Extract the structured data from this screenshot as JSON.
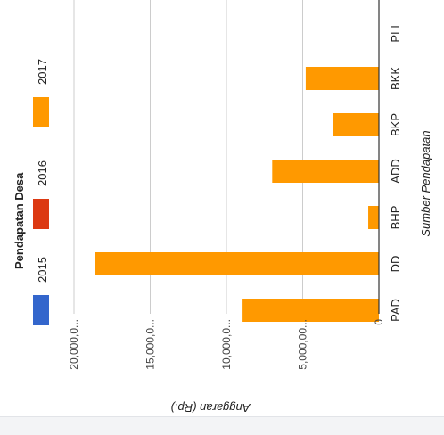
{
  "chart_data": {
    "type": "bar",
    "orientation": "horizontal",
    "legend_title": "Pendapatan Desa",
    "legend_position": "left",
    "xlabel": "Sumber Pendapatan",
    "ylabel": "Anggaran (Rp.)",
    "ylim": [
      0,
      22000000000
    ],
    "grid": true,
    "categories": [
      "PAD",
      "DD",
      "BHP",
      "ADD",
      "BKP",
      "BKK",
      "PLL"
    ],
    "ticks": [
      {
        "value": 0,
        "label": "0"
      },
      {
        "value": 5000000000,
        "label": "5,000,00..."
      },
      {
        "value": 10000000000,
        "label": "10,000,0..."
      },
      {
        "value": 15000000000,
        "label": "15,000,0..."
      },
      {
        "value": 20000000000,
        "label": "20,000,0..."
      }
    ],
    "series": [
      {
        "name": "2015",
        "color": "#3366cc",
        "values": [
          0,
          0,
          0,
          0,
          0,
          0,
          0
        ]
      },
      {
        "name": "2016",
        "color": "#dc3912",
        "values": [
          0,
          0,
          0,
          0,
          0,
          0,
          0
        ]
      },
      {
        "name": "2017",
        "color": "#ff9900",
        "values": [
          9000000000,
          18600000000,
          700000000,
          7000000000,
          3000000000,
          4800000000,
          0
        ]
      }
    ]
  }
}
